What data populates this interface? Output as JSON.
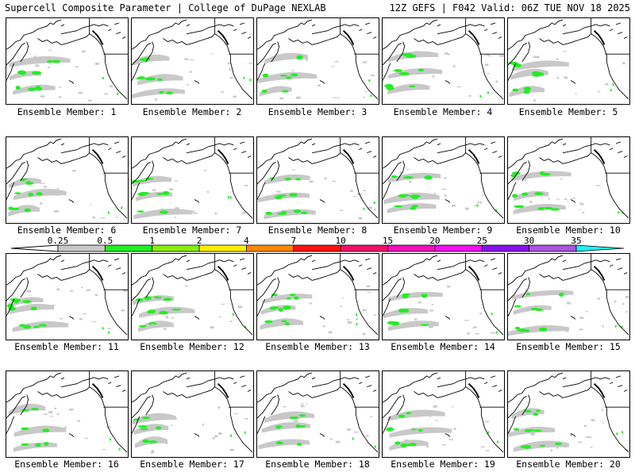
{
  "header": {
    "left_title": "Supercell Composite Parameter | College of DuPage NEXLAB",
    "right_title": "12Z GEFS | F042 Valid: 06Z TUE NOV 18 2025"
  },
  "colorbar": {
    "variable": "Supercell Composite Parameter",
    "thresholds": [
      "0.25",
      "0.5",
      "1",
      "2",
      "4",
      "7",
      "10",
      "15",
      "20",
      "25",
      "30",
      "35"
    ],
    "colors": [
      "#c8c8c8",
      "#22ee22",
      "#88ee11",
      "#ffee00",
      "#ff8800",
      "#ff1111",
      "#ee1166",
      "#ee11bb",
      "#ee11ee",
      "#8811ee",
      "#aa55dd",
      "#22eeee"
    ],
    "under_color": "#ffffff",
    "extends": "both"
  },
  "map": {
    "region": "North Pacific / Western North America",
    "land_outline_color": "#000000",
    "shading_low_color": "#c8c8c8",
    "shading_high_color": "#22ee22"
  },
  "members": [
    {
      "label": "Ensemble Member: 1",
      "intensity": 0.55,
      "seed": 1
    },
    {
      "label": "Ensemble Member: 2",
      "intensity": 0.6,
      "seed": 2
    },
    {
      "label": "Ensemble Member: 3",
      "intensity": 0.5,
      "seed": 3
    },
    {
      "label": "Ensemble Member: 4",
      "intensity": 0.65,
      "seed": 4
    },
    {
      "label": "Ensemble Member: 5",
      "intensity": 0.55,
      "seed": 5
    },
    {
      "label": "Ensemble Member: 6",
      "intensity": 0.45,
      "seed": 6
    },
    {
      "label": "Ensemble Member: 7",
      "intensity": 0.6,
      "seed": 7
    },
    {
      "label": "Ensemble Member: 8",
      "intensity": 0.55,
      "seed": 8
    },
    {
      "label": "Ensemble Member: 9",
      "intensity": 0.7,
      "seed": 9
    },
    {
      "label": "Ensemble Member: 10",
      "intensity": 0.6,
      "seed": 10
    },
    {
      "label": "Ensemble Member: 11",
      "intensity": 0.5,
      "seed": 11
    },
    {
      "label": "Ensemble Member: 12",
      "intensity": 0.55,
      "seed": 12
    },
    {
      "label": "Ensemble Member: 13",
      "intensity": 0.5,
      "seed": 13
    },
    {
      "label": "Ensemble Member: 14",
      "intensity": 0.4,
      "seed": 14
    },
    {
      "label": "Ensemble Member: 15",
      "intensity": 0.5,
      "seed": 15
    },
    {
      "label": "Ensemble Member: 16",
      "intensity": 0.4,
      "seed": 16
    },
    {
      "label": "Ensemble Member: 17",
      "intensity": 0.6,
      "seed": 17
    },
    {
      "label": "Ensemble Member: 18",
      "intensity": 0.55,
      "seed": 18
    },
    {
      "label": "Ensemble Member: 19",
      "intensity": 0.45,
      "seed": 19
    },
    {
      "label": "Ensemble Member: 20",
      "intensity": 0.55,
      "seed": 20
    }
  ]
}
